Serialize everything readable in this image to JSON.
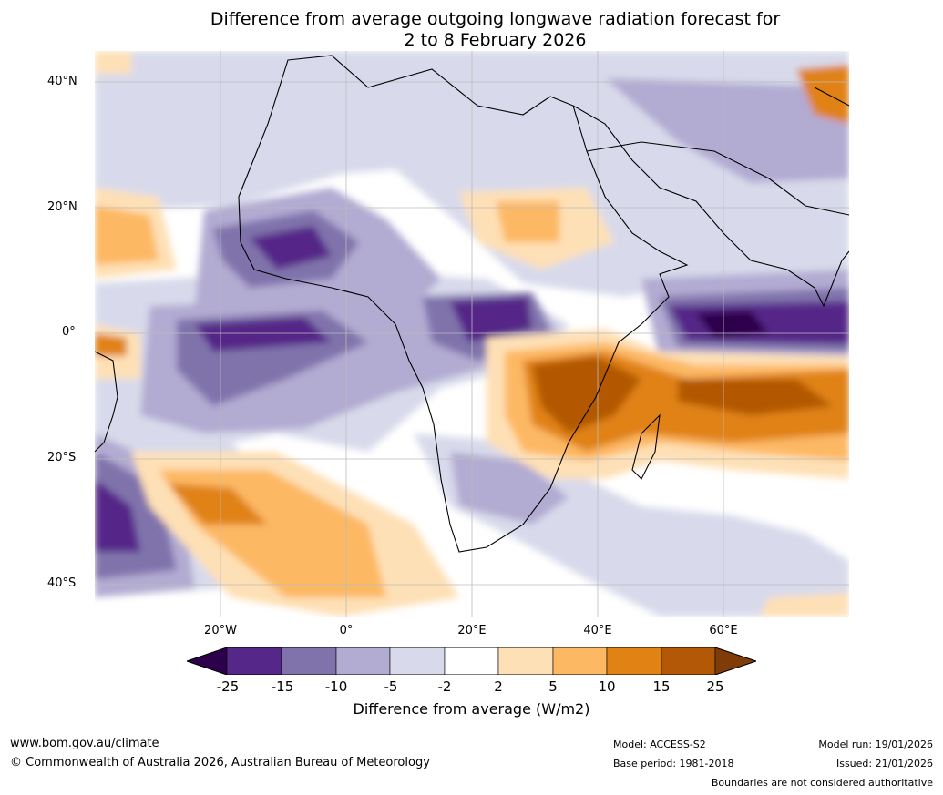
{
  "title": {
    "line1": "Difference from average outgoing longwave radiation forecast for",
    "line2": "2 to 8 February 2026"
  },
  "map": {
    "lat_ticks": [
      "40°N",
      "20°N",
      "0°",
      "20°S",
      "40°S"
    ],
    "lon_ticks": [
      "20°W",
      "0°",
      "20°E",
      "40°E",
      "60°E"
    ]
  },
  "colorbar": {
    "ticks": [
      "-25",
      "-15",
      "-10",
      "-5",
      "-2",
      "2",
      "5",
      "10",
      "15",
      "25"
    ],
    "colors": [
      "#2d004b",
      "#542788",
      "#8073ac",
      "#b2abd2",
      "#d8daeb",
      "#ffffff",
      "#fee0b6",
      "#fdb863",
      "#e08214",
      "#b35806",
      "#7f3b08"
    ],
    "title": "Difference from average (W/m2)"
  },
  "footer": {
    "website": "www.bom.gov.au/climate",
    "copyright": "© Commonwealth of Australia 2026, Australian Bureau of Meteorology",
    "model": "Model: ACCESS-S2",
    "base_period": "Base period: 1981-2018",
    "model_run": "Model run: 19/01/2026",
    "issued": "Issued: 21/01/2026",
    "disclaimer": "Boundaries are not considered authoritative"
  }
}
